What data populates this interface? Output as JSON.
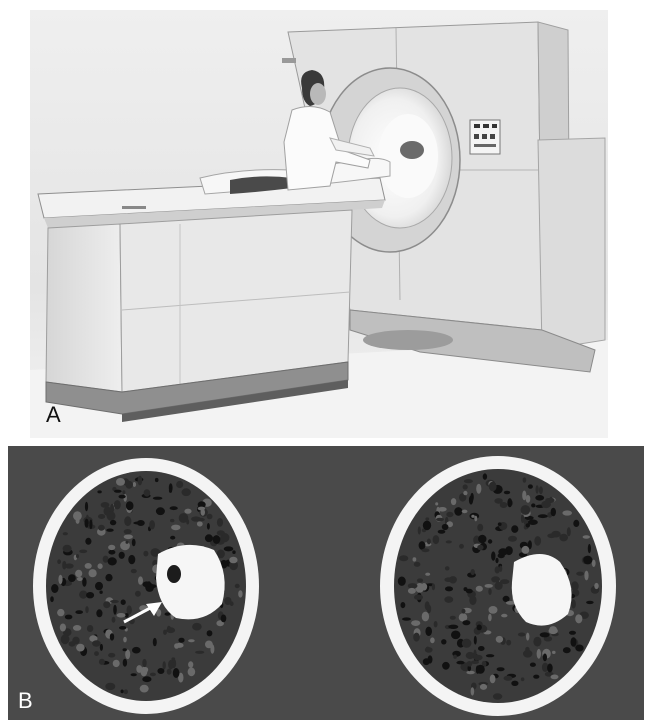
{
  "figure": {
    "panel_a": {
      "label": "A"
    },
    "panel_b": {
      "label": "B"
    }
  }
}
